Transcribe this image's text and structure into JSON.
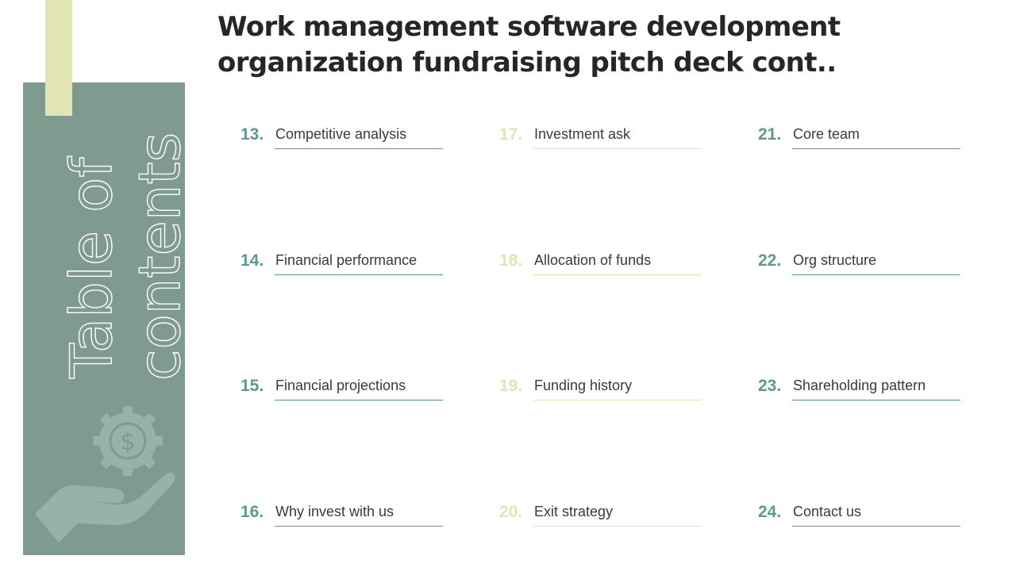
{
  "deck": {
    "title": "Work management software development organization fundraising pitch deck cont.."
  },
  "sidebar": {
    "title_line1": "Table of",
    "title_line2": "contents",
    "icon": "money-gear-hand-icon"
  },
  "colors": {
    "panel": "#7f9b8f",
    "accent": "#e0e5b3",
    "teal": "#5a9b8f",
    "lime": "#dfe5b4"
  },
  "toc": {
    "columns": [
      {
        "color": "teal",
        "items": [
          {
            "num": "13.",
            "label": "Competitive analysis"
          },
          {
            "num": "14.",
            "label": "Financial performance"
          },
          {
            "num": "15.",
            "label": "Financial projections"
          },
          {
            "num": "16.",
            "label": "Why invest with us"
          }
        ]
      },
      {
        "color": "lime",
        "items": [
          {
            "num": "17.",
            "label": "Investment ask"
          },
          {
            "num": "18.",
            "label": "Allocation of funds"
          },
          {
            "num": "19.",
            "label": "Funding history"
          },
          {
            "num": "20.",
            "label": "Exit strategy"
          }
        ]
      },
      {
        "color": "teal",
        "items": [
          {
            "num": "21.",
            "label": "Core team"
          },
          {
            "num": "22.",
            "label": "Org structure"
          },
          {
            "num": "23.",
            "label": "Shareholding pattern"
          },
          {
            "num": "24.",
            "label": "Contact us"
          }
        ]
      }
    ]
  }
}
